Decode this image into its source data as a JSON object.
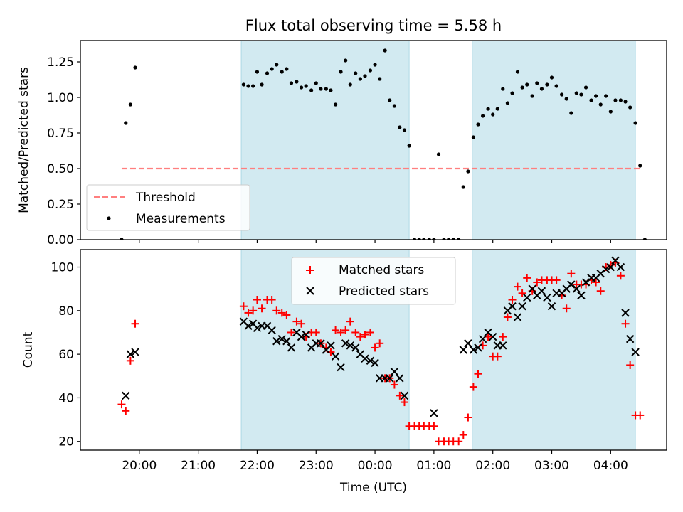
{
  "chart_data": [
    {
      "type": "scatter",
      "title": "Flux total observing time = 5.58 h",
      "ylabel": "Matched/Predicted stars",
      "xlabel": "",
      "ylim": [
        0,
        1.4
      ],
      "yticks": [
        "0.00",
        "0.25",
        "0.50",
        "0.75",
        "1.00",
        "1.25"
      ],
      "threshold": 0.5,
      "legend_position": "lower-left",
      "legend": [
        "Threshold",
        "Measurements"
      ],
      "series": [
        {
          "name": "Measurements",
          "color": "#000000",
          "marker": "dot",
          "points": [
            [
              19.7,
              0.0
            ],
            [
              19.77,
              0.82
            ],
            [
              19.85,
              0.95
            ],
            [
              19.93,
              1.21
            ],
            [
              21.77,
              1.09
            ],
            [
              21.85,
              1.08
            ],
            [
              21.93,
              1.08
            ],
            [
              22.0,
              1.18
            ],
            [
              22.08,
              1.09
            ],
            [
              22.17,
              1.17
            ],
            [
              22.25,
              1.2
            ],
            [
              22.33,
              1.23
            ],
            [
              22.42,
              1.18
            ],
            [
              22.5,
              1.2
            ],
            [
              22.58,
              1.1
            ],
            [
              22.67,
              1.11
            ],
            [
              22.75,
              1.07
            ],
            [
              22.83,
              1.08
            ],
            [
              22.92,
              1.05
            ],
            [
              23.0,
              1.1
            ],
            [
              23.08,
              1.06
            ],
            [
              23.17,
              1.06
            ],
            [
              23.25,
              1.05
            ],
            [
              23.33,
              0.95
            ],
            [
              23.42,
              1.18
            ],
            [
              23.5,
              1.26
            ],
            [
              23.58,
              1.09
            ],
            [
              23.67,
              1.17
            ],
            [
              23.75,
              1.13
            ],
            [
              23.83,
              1.15
            ],
            [
              23.92,
              1.19
            ],
            [
              24.0,
              1.23
            ],
            [
              24.08,
              1.13
            ],
            [
              24.17,
              1.33
            ],
            [
              24.25,
              0.98
            ],
            [
              24.33,
              0.94
            ],
            [
              24.42,
              0.79
            ],
            [
              24.5,
              0.77
            ],
            [
              24.58,
              0.66
            ],
            [
              24.67,
              0.0
            ],
            [
              24.75,
              0.0
            ],
            [
              24.83,
              0.0
            ],
            [
              24.92,
              0.0
            ],
            [
              25.0,
              0.0
            ],
            [
              25.08,
              0.6
            ],
            [
              25.17,
              0.0
            ],
            [
              25.25,
              0.0
            ],
            [
              25.33,
              0.0
            ],
            [
              25.42,
              0.0
            ],
            [
              25.5,
              0.37
            ],
            [
              25.58,
              0.48
            ],
            [
              25.67,
              0.72
            ],
            [
              25.75,
              0.81
            ],
            [
              25.83,
              0.87
            ],
            [
              25.92,
              0.92
            ],
            [
              26.0,
              0.88
            ],
            [
              26.08,
              0.92
            ],
            [
              26.17,
              1.06
            ],
            [
              26.25,
              0.96
            ],
            [
              26.33,
              1.03
            ],
            [
              26.42,
              1.18
            ],
            [
              26.5,
              1.07
            ],
            [
              26.58,
              1.09
            ],
            [
              26.67,
              1.01
            ],
            [
              26.75,
              1.1
            ],
            [
              26.83,
              1.06
            ],
            [
              26.92,
              1.09
            ],
            [
              27.0,
              1.14
            ],
            [
              27.08,
              1.08
            ],
            [
              27.17,
              1.02
            ],
            [
              27.25,
              0.99
            ],
            [
              27.33,
              0.89
            ],
            [
              27.42,
              1.03
            ],
            [
              27.5,
              1.02
            ],
            [
              27.58,
              1.07
            ],
            [
              27.67,
              0.98
            ],
            [
              27.75,
              1.01
            ],
            [
              27.83,
              0.95
            ],
            [
              27.92,
              1.01
            ],
            [
              28.0,
              0.9
            ],
            [
              28.08,
              0.98
            ],
            [
              28.17,
              0.98
            ],
            [
              28.25,
              0.97
            ],
            [
              28.33,
              0.93
            ],
            [
              28.42,
              0.82
            ],
            [
              28.5,
              0.52
            ],
            [
              28.58,
              0.0
            ]
          ]
        }
      ]
    },
    {
      "type": "scatter",
      "title": "",
      "ylabel": "Count",
      "xlabel": "Time (UTC)",
      "ylim": [
        16,
        108
      ],
      "yticks": [
        "20",
        "40",
        "60",
        "80",
        "100"
      ],
      "legend_position": "upper-center",
      "legend": [
        "Matched stars",
        "Predicted stars"
      ],
      "series": [
        {
          "name": "Matched stars",
          "color": "#ff0000",
          "marker": "plus",
          "points": [
            [
              19.7,
              37
            ],
            [
              19.77,
              34
            ],
            [
              19.85,
              57
            ],
            [
              19.93,
              74
            ],
            [
              21.77,
              82
            ],
            [
              21.85,
              79
            ],
            [
              21.93,
              80
            ],
            [
              22.0,
              85
            ],
            [
              22.08,
              81
            ],
            [
              22.17,
              85
            ],
            [
              22.25,
              85
            ],
            [
              22.33,
              80
            ],
            [
              22.42,
              79
            ],
            [
              22.5,
              78
            ],
            [
              22.58,
              70
            ],
            [
              22.67,
              75
            ],
            [
              22.75,
              74
            ],
            [
              22.83,
              68
            ],
            [
              22.92,
              70
            ],
            [
              23.0,
              70
            ],
            [
              23.08,
              65
            ],
            [
              23.17,
              63
            ],
            [
              23.25,
              61
            ],
            [
              23.33,
              71
            ],
            [
              23.42,
              70
            ],
            [
              23.5,
              71
            ],
            [
              23.58,
              75
            ],
            [
              23.67,
              70
            ],
            [
              23.75,
              68
            ],
            [
              23.83,
              69
            ],
            [
              23.92,
              70
            ],
            [
              24.0,
              63
            ],
            [
              24.08,
              65
            ],
            [
              24.17,
              49
            ],
            [
              24.25,
              49
            ],
            [
              24.33,
              46
            ],
            [
              24.42,
              41
            ],
            [
              24.5,
              38
            ],
            [
              24.58,
              27
            ],
            [
              24.67,
              27
            ],
            [
              24.75,
              27
            ],
            [
              24.83,
              27
            ],
            [
              24.92,
              27
            ],
            [
              25.0,
              27
            ],
            [
              25.08,
              20
            ],
            [
              25.17,
              20
            ],
            [
              25.25,
              20
            ],
            [
              25.33,
              20
            ],
            [
              25.42,
              20
            ],
            [
              25.5,
              23
            ],
            [
              25.58,
              31
            ],
            [
              25.67,
              45
            ],
            [
              25.75,
              51
            ],
            [
              25.83,
              64
            ],
            [
              25.92,
              68
            ],
            [
              26.0,
              59
            ],
            [
              26.08,
              59
            ],
            [
              26.17,
              68
            ],
            [
              26.25,
              77
            ],
            [
              26.33,
              85
            ],
            [
              26.42,
              91
            ],
            [
              26.5,
              88
            ],
            [
              26.58,
              95
            ],
            [
              26.67,
              89
            ],
            [
              26.75,
              93
            ],
            [
              26.83,
              94
            ],
            [
              26.92,
              94
            ],
            [
              27.0,
              94
            ],
            [
              27.08,
              94
            ],
            [
              27.17,
              87
            ],
            [
              27.25,
              81
            ],
            [
              27.33,
              97
            ],
            [
              27.42,
              92
            ],
            [
              27.5,
              92
            ],
            [
              27.58,
              92
            ],
            [
              27.67,
              94
            ],
            [
              27.75,
              93
            ],
            [
              27.83,
              89
            ],
            [
              27.92,
              100
            ],
            [
              28.0,
              101
            ],
            [
              28.08,
              102
            ],
            [
              28.17,
              96
            ],
            [
              28.25,
              74
            ],
            [
              28.33,
              55
            ],
            [
              28.42,
              32
            ],
            [
              28.5,
              32
            ]
          ]
        },
        {
          "name": "Predicted stars",
          "color": "#000000",
          "marker": "x",
          "points": [
            [
              19.77,
              41
            ],
            [
              19.85,
              60
            ],
            [
              19.93,
              61
            ],
            [
              21.77,
              75
            ],
            [
              21.85,
              73
            ],
            [
              21.93,
              74
            ],
            [
              22.0,
              72
            ],
            [
              22.08,
              73
            ],
            [
              22.17,
              73
            ],
            [
              22.25,
              71
            ],
            [
              22.33,
              66
            ],
            [
              22.42,
              67
            ],
            [
              22.5,
              66
            ],
            [
              22.58,
              63
            ],
            [
              22.67,
              70
            ],
            [
              22.75,
              68
            ],
            [
              22.83,
              69
            ],
            [
              22.92,
              63
            ],
            [
              23.0,
              65
            ],
            [
              23.08,
              65
            ],
            [
              23.17,
              62
            ],
            [
              23.25,
              64
            ],
            [
              23.33,
              59
            ],
            [
              23.42,
              54
            ],
            [
              23.5,
              65
            ],
            [
              23.58,
              64
            ],
            [
              23.67,
              63
            ],
            [
              23.75,
              60
            ],
            [
              23.83,
              58
            ],
            [
              23.92,
              57
            ],
            [
              24.0,
              56
            ],
            [
              24.08,
              49
            ],
            [
              24.17,
              49
            ],
            [
              24.25,
              49
            ],
            [
              24.33,
              52
            ],
            [
              24.42,
              49
            ],
            [
              24.5,
              41
            ],
            [
              25.0,
              33
            ],
            [
              25.5,
              62
            ],
            [
              25.58,
              65
            ],
            [
              25.67,
              62
            ],
            [
              25.75,
              63
            ],
            [
              25.83,
              67
            ],
            [
              25.92,
              70
            ],
            [
              26.0,
              68
            ],
            [
              26.08,
              64
            ],
            [
              26.17,
              64
            ],
            [
              26.25,
              80
            ],
            [
              26.33,
              82
            ],
            [
              26.42,
              77
            ],
            [
              26.5,
              82
            ],
            [
              26.58,
              86
            ],
            [
              26.67,
              90
            ],
            [
              26.75,
              87
            ],
            [
              26.83,
              89
            ],
            [
              26.92,
              86
            ],
            [
              27.0,
              82
            ],
            [
              27.08,
              88
            ],
            [
              27.17,
              88
            ],
            [
              27.25,
              90
            ],
            [
              27.33,
              92
            ],
            [
              27.42,
              90
            ],
            [
              27.5,
              87
            ],
            [
              27.58,
              93
            ],
            [
              27.67,
              95
            ],
            [
              27.75,
              95
            ],
            [
              27.83,
              97
            ],
            [
              27.92,
              99
            ],
            [
              28.0,
              100
            ],
            [
              28.08,
              103
            ],
            [
              28.17,
              100
            ],
            [
              28.25,
              79
            ],
            [
              28.33,
              67
            ],
            [
              28.42,
              61
            ]
          ]
        }
      ]
    }
  ],
  "shared_x": {
    "xlim": [
      19.0,
      28.95
    ],
    "ticks": [
      20,
      21,
      22,
      23,
      24,
      25,
      26,
      27,
      28
    ],
    "tick_labels": [
      "20:00",
      "21:00",
      "22:00",
      "23:00",
      "00:00",
      "01:00",
      "02:00",
      "03:00",
      "04:00"
    ],
    "shaded_intervals": [
      [
        21.73,
        24.58
      ],
      [
        25.65,
        28.42
      ]
    ],
    "shade_color": "#add8e6"
  }
}
